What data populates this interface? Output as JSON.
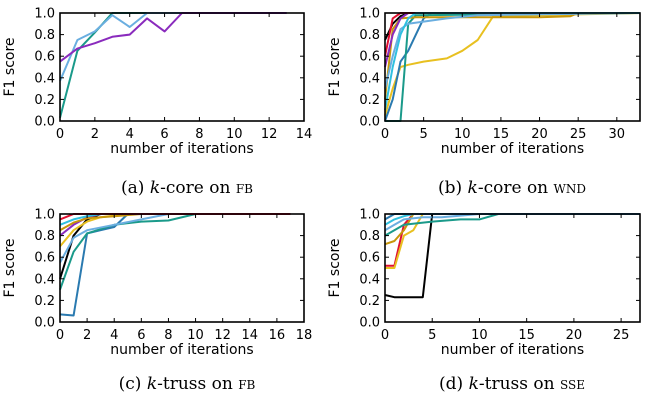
{
  "chart_data": [
    {
      "type": "line",
      "ylabel": "F1 score",
      "xlabel": "number of iterations",
      "caption": {
        "pre": "(a) ",
        "k": "k",
        "mid": "-core on ",
        "dataset": "FB"
      },
      "xlim": [
        0,
        14
      ],
      "ylim": [
        0,
        1
      ],
      "xticks": [
        "0",
        "2",
        "4",
        "6",
        "8",
        "10",
        "12",
        "14"
      ],
      "yticks": [
        "0.0",
        "0.2",
        "0.4",
        "0.6",
        "0.8",
        "1.0"
      ],
      "series": [
        {
          "color": "#1a9a8a",
          "x": [
            0,
            1,
            2,
            3,
            4,
            5,
            6,
            7,
            13
          ],
          "y": [
            0.03,
            0.65,
            0.82,
            1.0,
            1.0,
            1.0,
            1.0,
            1.0,
            1.0
          ]
        },
        {
          "color": "#6aaee0",
          "x": [
            0,
            1,
            2,
            3,
            4,
            5,
            6,
            13
          ],
          "y": [
            0.37,
            0.75,
            0.83,
            0.98,
            0.87,
            1.0,
            1.0,
            1.0
          ]
        },
        {
          "color": "#8a2bbd",
          "x": [
            0,
            1,
            2,
            3,
            4,
            5,
            6,
            7,
            13
          ],
          "y": [
            0.55,
            0.67,
            0.72,
            0.78,
            0.8,
            0.95,
            0.83,
            1.0,
            1.0
          ]
        }
      ]
    },
    {
      "type": "line",
      "ylabel": "F1 score",
      "xlabel": "number of iterations",
      "caption": {
        "pre": "(b) ",
        "k": "k",
        "mid": "-core on ",
        "dataset": "WND"
      },
      "xlim": [
        0,
        33
      ],
      "ylim": [
        0,
        1
      ],
      "xticks": [
        "0",
        "5",
        "10",
        "15",
        "20",
        "25",
        "30"
      ],
      "yticks": [
        "0.0",
        "0.2",
        "0.4",
        "0.6",
        "0.8",
        "1.0"
      ],
      "series": [
        {
          "color": "#000000",
          "x": [
            0,
            1,
            2,
            3,
            33
          ],
          "y": [
            0.75,
            0.9,
            0.97,
            1.0,
            1.0
          ]
        },
        {
          "color": "#e8c020",
          "x": [
            0,
            1,
            2,
            3,
            5,
            8,
            10,
            12,
            14,
            33
          ],
          "y": [
            0.05,
            0.3,
            0.5,
            0.52,
            0.55,
            0.58,
            0.65,
            0.75,
            0.97,
            1.0
          ]
        },
        {
          "color": "#2a7ab0",
          "x": [
            0,
            1,
            2,
            3,
            4,
            5,
            6,
            33
          ],
          "y": [
            0.0,
            0.2,
            0.55,
            0.65,
            0.8,
            0.95,
            1.0,
            1.0
          ]
        },
        {
          "color": "#1a9a8a",
          "x": [
            0,
            1,
            2,
            3,
            4,
            33
          ],
          "y": [
            0.0,
            0.0,
            0.0,
            0.9,
            0.98,
            1.0
          ]
        },
        {
          "color": "#c8960a",
          "x": [
            0,
            1,
            2,
            4,
            8,
            14,
            20,
            24,
            25,
            33
          ],
          "y": [
            0.2,
            0.85,
            0.95,
            0.96,
            0.96,
            0.96,
            0.96,
            0.97,
            1.0,
            1.0
          ]
        },
        {
          "color": "#6aaee0",
          "x": [
            0,
            1,
            2,
            3,
            5,
            8,
            12,
            33
          ],
          "y": [
            0.3,
            0.6,
            0.85,
            0.9,
            0.92,
            0.95,
            0.98,
            1.0
          ]
        },
        {
          "color": "#8a2bbd",
          "x": [
            0,
            1,
            2,
            3,
            33
          ],
          "y": [
            0.5,
            0.8,
            0.95,
            1.0,
            1.0
          ]
        },
        {
          "color": "#e01030",
          "x": [
            0,
            1,
            2,
            33
          ],
          "y": [
            0.6,
            0.95,
            1.0,
            1.0
          ]
        },
        {
          "color": "#30c0e0",
          "x": [
            0,
            1,
            2,
            3,
            4,
            33
          ],
          "y": [
            0.1,
            0.5,
            0.8,
            0.95,
            1.0,
            1.0
          ]
        }
      ]
    },
    {
      "type": "line",
      "ylabel": "F1 score",
      "xlabel": "number of iterations",
      "caption": {
        "pre": "(c) ",
        "k": "k",
        "mid": "-truss on ",
        "dataset": "FB"
      },
      "xlim": [
        0,
        18
      ],
      "ylim": [
        0,
        1
      ],
      "xticks": [
        "0",
        "2",
        "4",
        "6",
        "8",
        "10",
        "12",
        "14",
        "16",
        "18"
      ],
      "yticks": [
        "0.0",
        "0.2",
        "0.4",
        "0.6",
        "0.8",
        "1.0"
      ],
      "series": [
        {
          "color": "#2a7ab0",
          "x": [
            0,
            1,
            2,
            3,
            4,
            5,
            17
          ],
          "y": [
            0.07,
            0.06,
            0.82,
            0.85,
            0.88,
            1.0,
            1.0
          ]
        },
        {
          "color": "#1a9a8a",
          "x": [
            0,
            1,
            2,
            4,
            6,
            8,
            10,
            17
          ],
          "y": [
            0.3,
            0.65,
            0.82,
            0.9,
            0.93,
            0.94,
            1.0,
            1.0
          ]
        },
        {
          "color": "#000000",
          "x": [
            0,
            1,
            2,
            3,
            17
          ],
          "y": [
            0.4,
            0.8,
            0.95,
            1.0,
            1.0
          ]
        },
        {
          "color": "#6aaee0",
          "x": [
            0,
            1,
            2,
            4,
            6,
            8,
            17
          ],
          "y": [
            0.55,
            0.78,
            0.85,
            0.9,
            0.95,
            1.0,
            1.0
          ]
        },
        {
          "color": "#e8c020",
          "x": [
            0,
            1,
            2,
            3,
            5,
            17
          ],
          "y": [
            0.7,
            0.85,
            0.93,
            0.97,
            1.0,
            1.0
          ]
        },
        {
          "color": "#8a2bbd",
          "x": [
            0,
            1,
            2,
            3,
            17
          ],
          "y": [
            0.8,
            0.9,
            0.97,
            1.0,
            1.0
          ]
        },
        {
          "color": "#c8960a",
          "x": [
            0,
            1,
            2,
            4,
            6,
            17
          ],
          "y": [
            0.85,
            0.92,
            0.96,
            0.98,
            1.0,
            1.0
          ]
        },
        {
          "color": "#30c0e0",
          "x": [
            0,
            1,
            2,
            3,
            17
          ],
          "y": [
            0.9,
            0.95,
            0.98,
            1.0,
            1.0
          ]
        },
        {
          "color": "#e01030",
          "x": [
            0,
            1,
            17
          ],
          "y": [
            0.95,
            1.0,
            1.0
          ]
        }
      ]
    },
    {
      "type": "line",
      "ylabel": "F1 score",
      "xlabel": "number of iterations",
      "caption": {
        "pre": "(d) ",
        "k": "k",
        "mid": "-truss on ",
        "dataset": "SSE"
      },
      "xlim": [
        0,
        27
      ],
      "ylim": [
        0,
        1
      ],
      "xticks": [
        "0",
        "5",
        "10",
        "15",
        "20",
        "25"
      ],
      "yticks": [
        "0.0",
        "0.2",
        "0.4",
        "0.6",
        "0.8",
        "1.0"
      ],
      "series": [
        {
          "color": "#000000",
          "x": [
            0,
            1,
            2,
            3,
            4,
            5,
            27
          ],
          "y": [
            0.25,
            0.23,
            0.23,
            0.23,
            0.23,
            1.0,
            1.0
          ]
        },
        {
          "color": "#e01030",
          "x": [
            0,
            1,
            2,
            3,
            27
          ],
          "y": [
            0.52,
            0.52,
            0.9,
            1.0,
            1.0
          ]
        },
        {
          "color": "#e8c020",
          "x": [
            0,
            1,
            2,
            3,
            4,
            27
          ],
          "y": [
            0.5,
            0.5,
            0.8,
            0.85,
            1.0,
            1.0
          ]
        },
        {
          "color": "#c8960a",
          "x": [
            0,
            1,
            2,
            3,
            27
          ],
          "y": [
            0.72,
            0.75,
            0.85,
            1.0,
            1.0
          ]
        },
        {
          "color": "#1a9a8a",
          "x": [
            0,
            2,
            5,
            8,
            10,
            12,
            27
          ],
          "y": [
            0.8,
            0.9,
            0.93,
            0.95,
            0.95,
            1.0,
            1.0
          ]
        },
        {
          "color": "#6aaee0",
          "x": [
            0,
            1,
            2,
            4,
            6,
            10,
            27
          ],
          "y": [
            0.85,
            0.9,
            0.95,
            0.97,
            0.97,
            1.0,
            1.0
          ]
        },
        {
          "color": "#30c0e0",
          "x": [
            0,
            1,
            2,
            3,
            27
          ],
          "y": [
            0.9,
            0.95,
            0.98,
            1.0,
            1.0
          ]
        },
        {
          "color": "#2a7ab0",
          "x": [
            0,
            1,
            27
          ],
          "y": [
            0.95,
            1.0,
            1.0
          ]
        }
      ]
    }
  ]
}
